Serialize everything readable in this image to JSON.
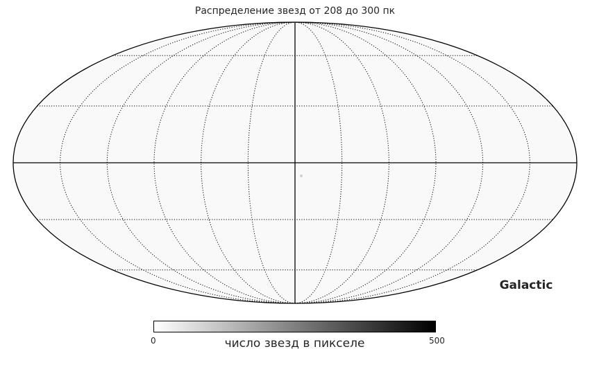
{
  "chart_data": {
    "type": "heatmap",
    "projection": "mollweide",
    "title": "Распределение звезд от 208 до 300 пк",
    "coordinate_system": "Galactic",
    "colorbar": {
      "label": "число звезд в пикселе",
      "min": 0,
      "max": 500,
      "min_label": "0",
      "max_label": "500",
      "colormap": "gray_r",
      "color_low": "#ffffff",
      "color_high": "#000000"
    },
    "map": {
      "background_value": 12,
      "hotspot": {
        "lon": 0,
        "lat": -5,
        "value": 90
      }
    },
    "graticule": {
      "meridians_deg": [
        -180,
        -150,
        -120,
        -90,
        -60,
        -30,
        0,
        30,
        60,
        90,
        120,
        150,
        180
      ],
      "parallels_deg": [
        -60,
        -30,
        0,
        30,
        60
      ],
      "style": "dotted",
      "axes_solid": true
    }
  }
}
